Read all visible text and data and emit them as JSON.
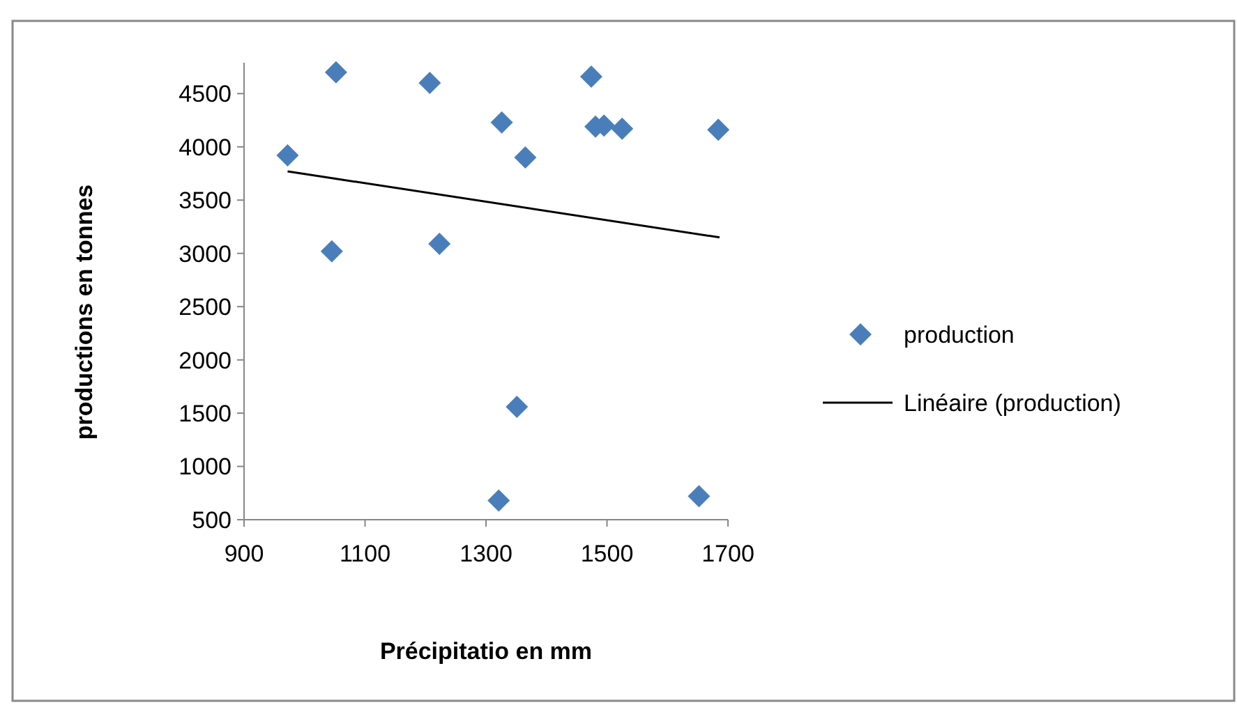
{
  "chart_data": {
    "type": "scatter",
    "xlabel": "Précipitatio en mm",
    "ylabel": "productions en tonnes",
    "xlim": [
      900,
      1700
    ],
    "xticks": [
      900,
      1100,
      1300,
      1500,
      1700
    ],
    "ylim": [
      500,
      4790
    ],
    "yticks": [
      500,
      1000,
      1500,
      2000,
      2500,
      3000,
      3500,
      4000,
      4500
    ],
    "grid": false,
    "legend": "right",
    "marker": "diamond",
    "series": [
      {
        "name": "production",
        "color": "#4a7ebb",
        "x": [
          972,
          1052,
          1045,
          1207,
          1223,
          1326,
          1365,
          1474,
          1481,
          1495,
          1525,
          1684,
          1351,
          1321,
          1652
        ],
        "values": [
          3920,
          4700,
          3020,
          4600,
          3090,
          4230,
          3900,
          4660,
          4190,
          4200,
          4170,
          4160,
          1560,
          680,
          720
        ]
      },
      {
        "name": "Linéaire (production)",
        "type": "line",
        "color": "#000000",
        "marker": "none",
        "line_style": "solid",
        "x": [
          972,
          1686
        ],
        "values": [
          3770,
          3150
        ]
      }
    ]
  }
}
